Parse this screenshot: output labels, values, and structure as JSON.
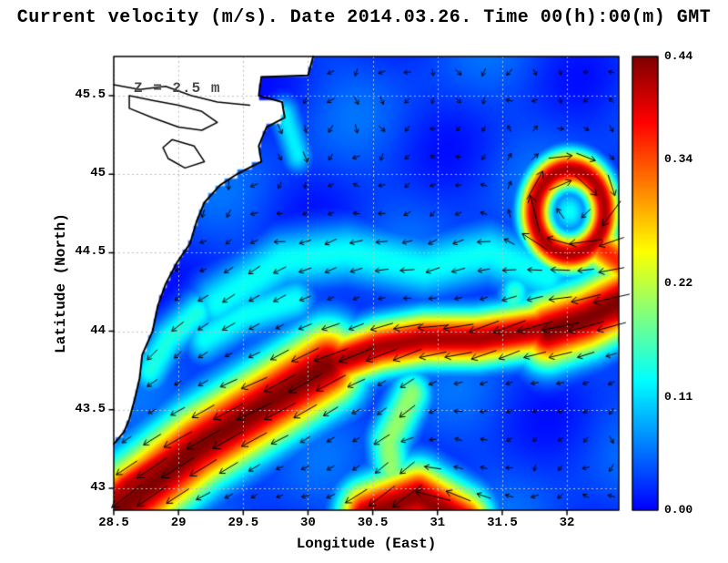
{
  "colors": {
    "arrow": "#000000",
    "coastline": "#000000",
    "land": "#ffffff",
    "grid_dots": "#bdbdbd",
    "frame": "#000000",
    "annotation_text": "#4a4a4a"
  },
  "chart_data": {
    "type": "heatmap",
    "overlay": "quiver",
    "units": "m/s",
    "title": "Current velocity (m/s). Date 2014.03.26. Time 00(h):00(m) GMT",
    "annotation": "Z = 2.5 m",
    "xlabel": "Longitude (East)",
    "ylabel": "Latitude (North)",
    "x_range": [
      28.5,
      32.4
    ],
    "y_range": [
      42.86,
      45.75
    ],
    "x_ticks": [
      28.5,
      29,
      29.5,
      30,
      30.5,
      31,
      31.5,
      32
    ],
    "x_tick_labels": [
      "28.5",
      "29",
      "29.5",
      "30",
      "30.5",
      "31",
      "31.5",
      "32"
    ],
    "y_ticks": [
      43,
      43.5,
      44,
      44.5,
      45,
      45.5
    ],
    "y_tick_labels": [
      "43",
      "43.5",
      "44",
      "44.5",
      "45",
      "45.5"
    ],
    "colorbar": {
      "min": 0,
      "max": 0.44,
      "colormap": "jet",
      "tick_values": [
        0.44,
        0.34,
        0.22,
        0.11,
        0.0
      ],
      "tick_labels": [
        "0.44",
        "0.34",
        "0.22",
        "0.11",
        "0.00"
      ]
    },
    "background_speed": 0.032,
    "flow_features": [
      {
        "name": "rim-current-east-west",
        "kind": "path",
        "amp": 0.42,
        "width": 0.12,
        "points": [
          [
            32.45,
            44.15
          ],
          [
            32.1,
            44.05
          ],
          [
            31.7,
            44.0
          ],
          [
            31.3,
            43.95
          ],
          [
            30.9,
            43.95
          ],
          [
            30.55,
            43.9
          ],
          [
            30.2,
            43.8
          ],
          [
            29.8,
            43.6
          ],
          [
            29.4,
            43.42
          ],
          [
            29.0,
            43.22
          ],
          [
            28.6,
            43.0
          ],
          [
            28.35,
            42.8
          ]
        ]
      },
      {
        "name": "rim-current-sw-core",
        "kind": "path",
        "amp": 0.44,
        "width": 0.19,
        "points": [
          [
            30.15,
            43.78
          ],
          [
            29.65,
            43.52
          ],
          [
            29.15,
            43.26
          ],
          [
            28.75,
            43.0
          ],
          [
            28.4,
            42.78
          ]
        ]
      },
      {
        "name": "east-inflow",
        "kind": "path",
        "amp": 0.44,
        "width": 0.16,
        "points": [
          [
            32.48,
            44.22
          ],
          [
            32.15,
            44.08
          ],
          [
            31.85,
            44.0
          ]
        ]
      },
      {
        "name": "south-meander-blob",
        "kind": "path",
        "amp": 0.43,
        "width": 0.15,
        "points": [
          [
            31.2,
            42.78
          ],
          [
            30.85,
            42.95
          ],
          [
            30.45,
            42.83
          ]
        ]
      },
      {
        "name": "meander-connector",
        "kind": "path",
        "amp": 0.2,
        "width": 0.11,
        "points": [
          [
            30.8,
            43.6
          ],
          [
            30.62,
            43.3
          ],
          [
            30.66,
            43.02
          ]
        ]
      },
      {
        "name": "mid-basin-cyan-band",
        "kind": "path",
        "amp": 0.13,
        "width": 0.14,
        "points": [
          [
            31.85,
            44.35
          ],
          [
            31.4,
            44.5
          ],
          [
            30.9,
            44.4
          ],
          [
            30.3,
            44.5
          ],
          [
            29.8,
            44.45
          ],
          [
            29.3,
            44.18
          ]
        ]
      },
      {
        "name": "west-cyan-streak",
        "kind": "path",
        "amp": 0.13,
        "width": 0.11,
        "points": [
          [
            29.9,
            44.2
          ],
          [
            29.5,
            44.1
          ],
          [
            29.2,
            43.95
          ]
        ]
      },
      {
        "name": "coastal-cyan",
        "kind": "path",
        "amp": 0.14,
        "width": 0.1,
        "points": [
          [
            29.15,
            44.12
          ],
          [
            28.92,
            43.95
          ],
          [
            28.78,
            43.75
          ]
        ]
      },
      {
        "name": "danube-plume",
        "kind": "path",
        "amp": 0.12,
        "width": 0.08,
        "points": [
          [
            29.82,
            45.38
          ],
          [
            29.92,
            45.12
          ]
        ]
      },
      {
        "name": "eddy-jet-link",
        "kind": "path",
        "amp": 0.15,
        "width": 0.09,
        "points": [
          [
            31.6,
            44.25
          ],
          [
            31.55,
            43.98
          ]
        ]
      },
      {
        "name": "ring-east-tail",
        "kind": "path",
        "amp": 0.36,
        "width": 0.11,
        "points": [
          [
            32.48,
            44.4
          ],
          [
            32.28,
            44.52
          ]
        ]
      },
      {
        "name": "anticyclonic-eddy-ring",
        "kind": "ring",
        "amp": 0.42,
        "width": 0.085,
        "center": [
          32.02,
          44.76
        ],
        "radius": 0.27,
        "rotation": "clockwise"
      },
      {
        "name": "eddy-core",
        "kind": "spot",
        "amp": 0.13,
        "width": 0.1,
        "center": [
          32.02,
          44.76
        ]
      }
    ],
    "quiver_grid": {
      "lon_start": 28.6,
      "dlon": 0.197,
      "cols": 20,
      "lat_start": 42.95,
      "dlat": 0.18,
      "rows": 16
    },
    "coastline": [
      [
        30.04,
        45.75
      ],
      [
        30.0,
        45.63
      ],
      [
        29.64,
        45.62
      ],
      [
        29.62,
        45.5
      ],
      [
        29.8,
        45.46
      ],
      [
        29.82,
        45.36
      ],
      [
        29.68,
        45.3
      ],
      [
        29.62,
        45.18
      ],
      [
        29.64,
        45.08
      ],
      [
        29.45,
        45.0
      ],
      [
        29.32,
        44.93
      ],
      [
        29.2,
        44.82
      ],
      [
        29.14,
        44.7
      ],
      [
        29.09,
        44.56
      ],
      [
        28.99,
        44.44
      ],
      [
        28.9,
        44.3
      ],
      [
        28.84,
        44.16
      ],
      [
        28.8,
        44.0
      ],
      [
        28.72,
        43.85
      ],
      [
        28.7,
        43.7
      ],
      [
        28.66,
        43.56
      ],
      [
        28.62,
        43.44
      ],
      [
        28.58,
        43.36
      ],
      [
        28.5,
        43.28
      ]
    ],
    "lakes": [
      [
        [
          28.62,
          45.5
        ],
        [
          28.8,
          45.47
        ],
        [
          29.0,
          45.44
        ],
        [
          29.18,
          45.4
        ],
        [
          29.3,
          45.33
        ],
        [
          29.18,
          45.28
        ],
        [
          29.0,
          45.3
        ],
        [
          28.8,
          45.36
        ],
        [
          28.62,
          45.42
        ]
      ],
      [
        [
          28.95,
          45.22
        ],
        [
          29.12,
          45.18
        ],
        [
          29.2,
          45.08
        ],
        [
          29.05,
          45.04
        ],
        [
          28.92,
          45.1
        ],
        [
          28.88,
          45.17
        ]
      ]
    ],
    "river": [
      [
        28.5,
        45.57
      ],
      [
        28.7,
        45.54
      ],
      [
        28.9,
        45.56
      ],
      [
        29.1,
        45.5
      ],
      [
        29.3,
        45.46
      ],
      [
        29.55,
        45.44
      ]
    ]
  }
}
